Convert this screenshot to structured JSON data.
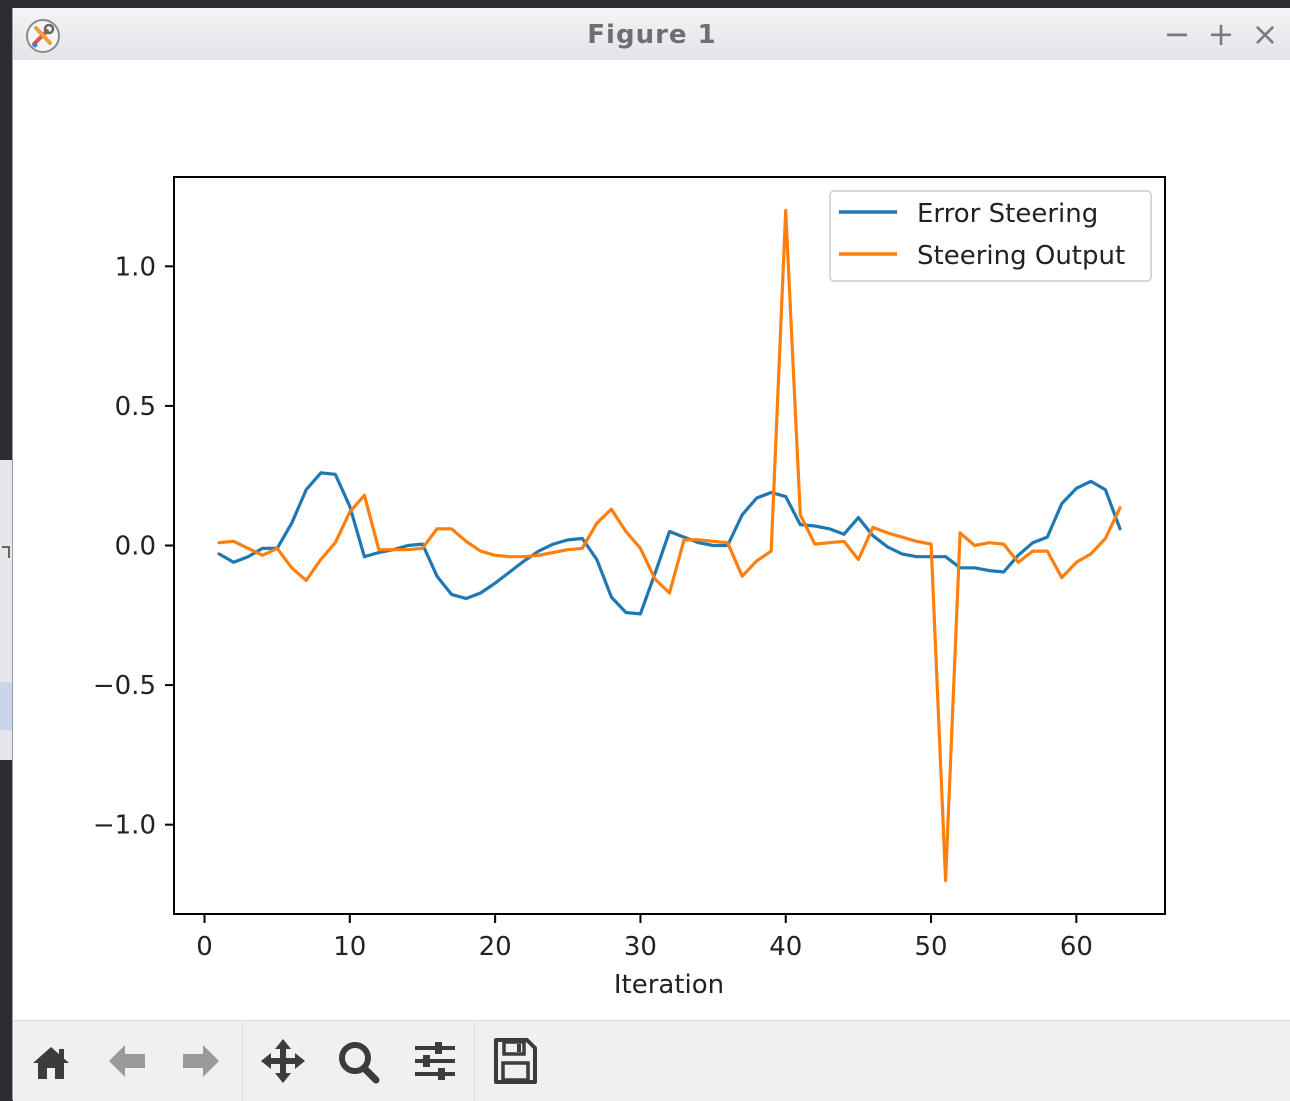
{
  "window": {
    "title": "Figure 1",
    "minimize_label": "−",
    "maximize_label": "+",
    "close_label": "×",
    "app_icon": "matplotlib-tools-icon"
  },
  "toolbar": {
    "buttons": [
      {
        "name": "home",
        "icon": "home-icon"
      },
      {
        "name": "back",
        "icon": "arrow-left-icon"
      },
      {
        "name": "forward",
        "icon": "arrow-right-icon"
      },
      {
        "name": "pan",
        "icon": "move-arrows-icon"
      },
      {
        "name": "zoom",
        "icon": "magnifier-icon"
      },
      {
        "name": "configure",
        "icon": "sliders-icon"
      },
      {
        "name": "save",
        "icon": "floppy-disk-icon"
      }
    ]
  },
  "chart_data": {
    "type": "line",
    "title": "",
    "xlabel": "Iteration",
    "ylabel": "",
    "xlim": [
      -2.1,
      66.1
    ],
    "ylim": [
      -1.32,
      1.32
    ],
    "xticks": [
      0,
      10,
      20,
      30,
      40,
      50,
      60
    ],
    "xtick_labels": [
      "0",
      "10",
      "20",
      "30",
      "40",
      "50",
      "60"
    ],
    "yticks": [
      1.0,
      0.5,
      0.0,
      -0.5,
      -1.0
    ],
    "ytick_labels": [
      "1.0",
      "0.5",
      "0.0",
      "−0.5",
      "−1.0"
    ],
    "grid": false,
    "legend_position": "top-right",
    "x": [
      1,
      2,
      3,
      4,
      5,
      6,
      7,
      8,
      9,
      10,
      11,
      12,
      13,
      14,
      15,
      16,
      17,
      18,
      19,
      20,
      21,
      22,
      23,
      24,
      25,
      26,
      27,
      28,
      29,
      30,
      31,
      32,
      33,
      34,
      35,
      36,
      37,
      38,
      39,
      40,
      41,
      42,
      43,
      44,
      45,
      46,
      47,
      48,
      49,
      50,
      51,
      52,
      53,
      54,
      55,
      56,
      57,
      58,
      59,
      60,
      61,
      62,
      63
    ],
    "series": [
      {
        "name": "Error Steering",
        "color": "#1f77b4",
        "values": [
          -0.03,
          -0.06,
          -0.04,
          -0.01,
          -0.01,
          0.08,
          0.2,
          0.26,
          0.255,
          0.14,
          -0.04,
          -0.025,
          -0.015,
          0.0,
          0.005,
          -0.11,
          -0.175,
          -0.19,
          -0.17,
          -0.135,
          -0.095,
          -0.055,
          -0.02,
          0.005,
          0.02,
          0.025,
          -0.05,
          -0.185,
          -0.24,
          -0.245,
          -0.1,
          0.05,
          0.03,
          0.01,
          0.0,
          0.0,
          0.11,
          0.17,
          0.19,
          0.175,
          0.075,
          0.07,
          0.06,
          0.04,
          0.1,
          0.035,
          -0.005,
          -0.03,
          -0.04,
          -0.04,
          -0.04,
          -0.08,
          -0.08,
          -0.09,
          -0.095,
          -0.035,
          0.01,
          0.03,
          0.15,
          0.205,
          0.23,
          0.2,
          0.06
        ]
      },
      {
        "name": "Steering Output",
        "color": "#ff7f0e",
        "values": [
          0.01,
          0.015,
          -0.01,
          -0.035,
          -0.01,
          -0.08,
          -0.125,
          -0.05,
          0.01,
          0.12,
          0.18,
          -0.015,
          -0.015,
          -0.015,
          -0.01,
          0.06,
          0.06,
          0.015,
          -0.02,
          -0.035,
          -0.04,
          -0.04,
          -0.035,
          -0.025,
          -0.015,
          -0.01,
          0.08,
          0.13,
          0.05,
          -0.01,
          -0.12,
          -0.17,
          0.02,
          0.02,
          0.015,
          0.01,
          -0.11,
          -0.055,
          -0.02,
          1.2,
          0.11,
          0.005,
          0.01,
          0.015,
          -0.05,
          0.065,
          0.045,
          0.03,
          0.015,
          0.005,
          -1.2,
          0.045,
          0.0,
          0.01,
          0.005,
          -0.06,
          -0.02,
          -0.02,
          -0.115,
          -0.06,
          -0.03,
          0.025,
          0.135
        ]
      }
    ]
  }
}
